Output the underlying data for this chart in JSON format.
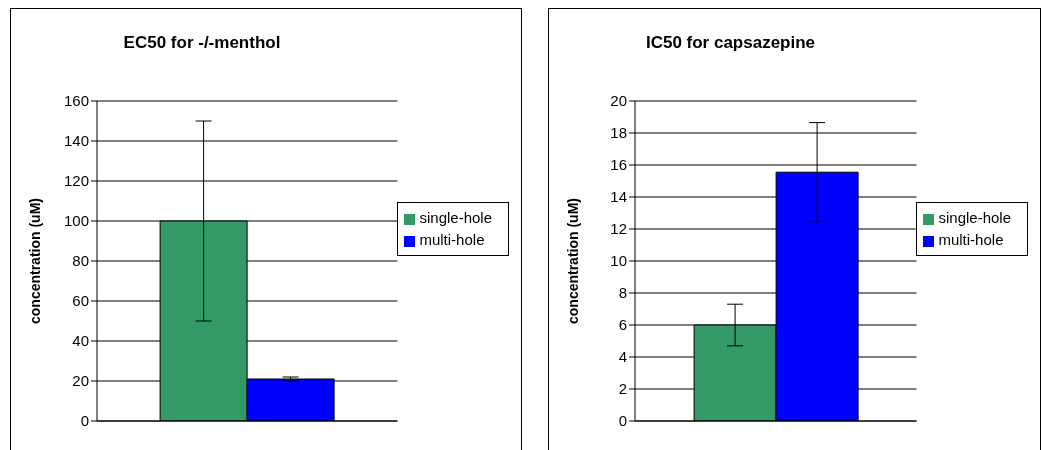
{
  "chart_data": [
    {
      "type": "bar",
      "title": "EC50 for -/-menthol",
      "ylabel": "concentration (uM)",
      "categories": [
        null
      ],
      "series": [
        {
          "name": "single-hole",
          "color": "#339966",
          "values": [
            100
          ],
          "errors": [
            50
          ]
        },
        {
          "name": "multi-hole",
          "color": "#0000ff",
          "values": [
            21
          ],
          "errors": [
            1
          ]
        }
      ],
      "ylim": [
        0,
        160
      ],
      "yticks": [
        0,
        20,
        40,
        60,
        80,
        100,
        120,
        140,
        160
      ],
      "grid": "y",
      "legend": "right",
      "tick_labels": "y"
    },
    {
      "type": "bar",
      "title": "IC50 for capsazepine",
      "ylabel": "concentration (uM)",
      "categories": [
        null
      ],
      "series": [
        {
          "name": "single-hole",
          "color": "#339966",
          "values": [
            6
          ],
          "errors": [
            1.3
          ]
        },
        {
          "name": "multi-hole",
          "color": "#0000ff",
          "values": [
            15.55
          ],
          "errors": [
            3.1
          ]
        }
      ],
      "ylim": [
        0,
        20
      ],
      "yticks": [
        0,
        2,
        4,
        6,
        8,
        10,
        12,
        14,
        16,
        18,
        20
      ],
      "grid": "y",
      "legend": "right",
      "tick_labels": "y"
    }
  ]
}
